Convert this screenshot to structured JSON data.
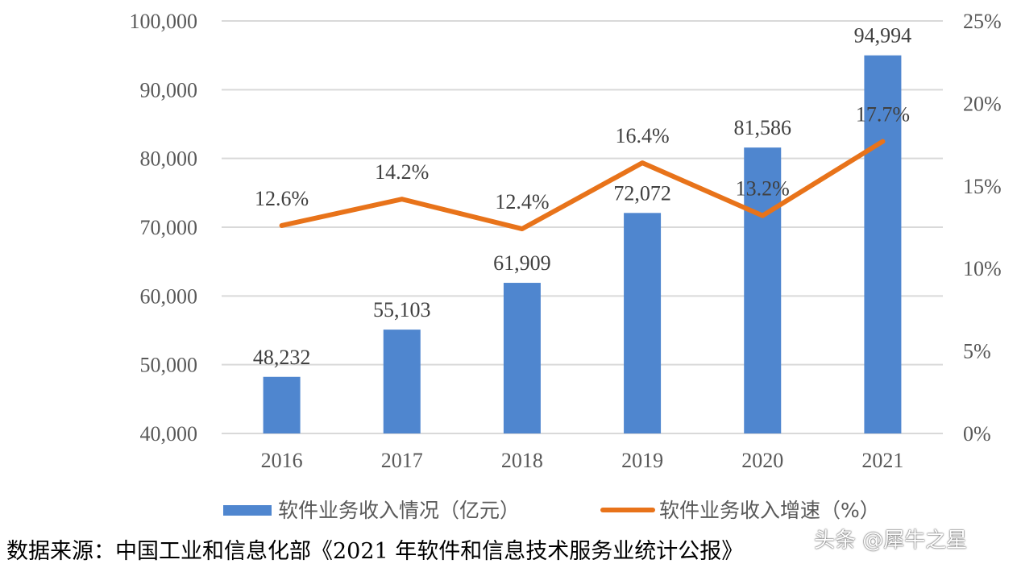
{
  "chart_data": {
    "type": "bar+line",
    "categories": [
      "2016",
      "2017",
      "2018",
      "2019",
      "2020",
      "2021"
    ],
    "series": [
      {
        "name": "软件业务收入情况（亿元）",
        "type": "bar",
        "axis": "left",
        "color": "#4f86cf",
        "values": [
          48232,
          55103,
          61909,
          72072,
          81586,
          94994
        ],
        "labels": [
          "48,232",
          "55,103",
          "61,909",
          "72,072",
          "81,586",
          "94,994"
        ]
      },
      {
        "name": "软件业务收入增速（%）",
        "type": "line",
        "axis": "right",
        "color": "#e8731a",
        "values": [
          12.6,
          14.2,
          12.4,
          16.4,
          13.2,
          17.7
        ],
        "labels": [
          "12.6%",
          "14.2%",
          "12.4%",
          "16.4%",
          "13.2%",
          "17.7%"
        ]
      }
    ],
    "left_axis": {
      "ylim": [
        40000,
        100000
      ],
      "ticks": [
        40000,
        50000,
        60000,
        70000,
        80000,
        90000,
        100000
      ],
      "tick_labels": [
        "40,000",
        "50,000",
        "60,000",
        "70,000",
        "80,000",
        "90,000",
        "100,000"
      ]
    },
    "right_axis": {
      "ylim": [
        0,
        25
      ],
      "ticks": [
        0,
        5,
        10,
        15,
        20,
        25
      ],
      "tick_labels": [
        "0%",
        "5%",
        "10%",
        "15%",
        "20%",
        "25%"
      ]
    },
    "grid": true,
    "gridline_color": "#d9d9d9",
    "legend_position": "bottom"
  },
  "source_text": "数据来源：中国工业和信息化部《2021 年软件和信息技术服务业统计公报》",
  "watermark_text": "头条 @犀牛之星"
}
